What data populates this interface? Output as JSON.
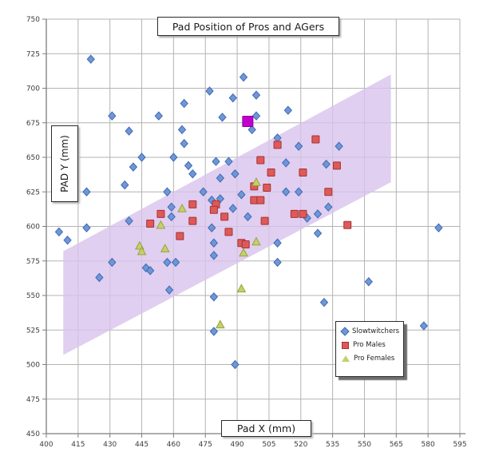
{
  "title": "Pad Position of Pros and AGers",
  "axes": {
    "x": {
      "label": "Pad X (mm)",
      "min": 400,
      "max": 595,
      "step": 15,
      "ticks": [
        400,
        415,
        430,
        445,
        460,
        475,
        490,
        505,
        520,
        535,
        550,
        565,
        580,
        595
      ]
    },
    "y": {
      "label": "PAD Y (mm)",
      "min": 450,
      "max": 750,
      "step": 25,
      "ticks": [
        450,
        475,
        500,
        525,
        550,
        575,
        600,
        625,
        650,
        675,
        700,
        725,
        750
      ]
    }
  },
  "legend": {
    "items": [
      {
        "label": "Slowtwitchers",
        "marker": "diamond"
      },
      {
        "label": "Pro Males",
        "marker": "square"
      },
      {
        "label": "Pro Females",
        "marker": "triangle"
      }
    ]
  },
  "colors": {
    "grid": "#b3b3b3",
    "axis": "#7d7d7d",
    "tick_text": "#3c3c3c",
    "band_fill": "#d8c3ec",
    "slowtwitchers_fill": "#6f97d6",
    "slowtwitchers_stroke": "#3f69b5",
    "pro_males_fill": "#dd5a5a",
    "pro_males_stroke": "#a83232",
    "pro_females_fill": "#c6cf6e",
    "pro_females_stroke": "#99a339",
    "highlight_fill": "#bf00cf",
    "highlight_stroke": "#8d0099"
  },
  "chart_data": {
    "type": "scatter",
    "title": "Pad Position of Pros and AGers",
    "xlabel": "Pad X (mm)",
    "ylabel": "PAD Y (mm)",
    "xlim": [
      400,
      595
    ],
    "ylim": [
      450,
      750
    ],
    "grid": true,
    "legend_position": "inside-bottom-right",
    "band_polygon": [
      [
        408,
        507
      ],
      [
        408,
        582
      ],
      [
        562.5,
        710
      ],
      [
        562.5,
        632
      ]
    ],
    "highlight_point": {
      "x": 495,
      "y": 676,
      "marker": "square",
      "note": "magenta highlighted square"
    },
    "series": [
      {
        "name": "Slowtwitchers",
        "marker": "diamond",
        "points": [
          [
            421,
            721
          ],
          [
            493,
            708
          ],
          [
            477,
            698
          ],
          [
            499,
            695
          ],
          [
            488,
            693
          ],
          [
            465,
            689
          ],
          [
            514,
            684
          ],
          [
            431,
            680
          ],
          [
            453,
            680
          ],
          [
            499,
            680
          ],
          [
            483,
            679
          ],
          [
            464,
            670
          ],
          [
            439,
            669
          ],
          [
            497,
            670
          ],
          [
            509,
            664
          ],
          [
            465,
            660
          ],
          [
            519,
            658
          ],
          [
            538,
            658
          ],
          [
            445,
            650
          ],
          [
            460,
            650
          ],
          [
            480,
            647
          ],
          [
            486,
            647
          ],
          [
            513,
            646
          ],
          [
            532,
            645
          ],
          [
            467,
            644
          ],
          [
            441,
            643
          ],
          [
            469,
            638
          ],
          [
            489,
            638
          ],
          [
            482,
            635
          ],
          [
            437,
            630
          ],
          [
            419,
            625
          ],
          [
            457,
            625
          ],
          [
            474,
            625
          ],
          [
            492,
            623
          ],
          [
            513,
            625
          ],
          [
            519,
            625
          ],
          [
            478,
            619
          ],
          [
            482,
            620
          ],
          [
            459,
            614
          ],
          [
            488,
            613
          ],
          [
            533,
            614
          ],
          [
            459,
            607
          ],
          [
            495,
            607
          ],
          [
            528,
            609
          ],
          [
            523,
            606
          ],
          [
            439,
            604
          ],
          [
            419,
            599
          ],
          [
            406,
            596
          ],
          [
            410,
            590
          ],
          [
            478,
            599
          ],
          [
            479,
            588
          ],
          [
            509,
            588
          ],
          [
            528,
            595
          ],
          [
            585,
            599
          ],
          [
            479,
            579
          ],
          [
            509,
            574
          ],
          [
            431,
            574
          ],
          [
            457,
            574
          ],
          [
            461,
            574
          ],
          [
            447,
            570
          ],
          [
            449,
            568
          ],
          [
            425,
            563
          ],
          [
            458,
            554
          ],
          [
            479,
            549
          ],
          [
            552,
            560
          ],
          [
            531,
            545
          ],
          [
            578,
            528
          ],
          [
            479,
            524
          ],
          [
            489,
            500
          ]
        ]
      },
      {
        "name": "Pro Males",
        "marker": "square",
        "points": [
          [
            469,
            616
          ],
          [
            480,
            616
          ],
          [
            479,
            612
          ],
          [
            454,
            609
          ],
          [
            449,
            602
          ],
          [
            463,
            593
          ],
          [
            469,
            604
          ],
          [
            484,
            607
          ],
          [
            498,
            619
          ],
          [
            501,
            619
          ],
          [
            486,
            596
          ],
          [
            492,
            588
          ],
          [
            494,
            587
          ],
          [
            503,
            604
          ],
          [
            517,
            609
          ],
          [
            521,
            609
          ],
          [
            533,
            625
          ],
          [
            542,
            601
          ],
          [
            537,
            644
          ],
          [
            498,
            629
          ],
          [
            504,
            628
          ],
          [
            501,
            648
          ],
          [
            506,
            639
          ],
          [
            521,
            639
          ],
          [
            509,
            659
          ],
          [
            527,
            663
          ]
        ]
      },
      {
        "name": "Pro Females",
        "marker": "triangle",
        "points": [
          [
            464,
            613
          ],
          [
            454,
            601
          ],
          [
            444,
            586
          ],
          [
            445,
            582
          ],
          [
            456,
            584
          ],
          [
            499,
            589
          ],
          [
            493,
            581
          ],
          [
            499,
            632
          ],
          [
            492,
            555
          ],
          [
            482,
            529
          ]
        ]
      }
    ]
  }
}
